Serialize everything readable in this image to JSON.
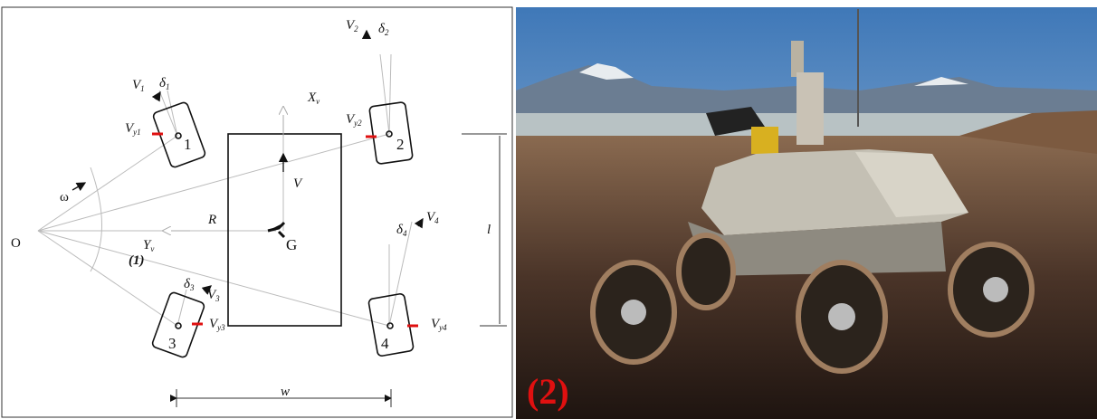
{
  "panels": [
    {
      "label": "(1)"
    },
    {
      "label": "(2)"
    }
  ],
  "diagram": {
    "origin": "O",
    "center": "G",
    "radius": "R",
    "width": "w",
    "length": "l",
    "omega": "ω",
    "velocity": "V",
    "axes": {
      "x": {
        "base": "X",
        "sub": "v"
      },
      "y": {
        "base": "Y",
        "sub": "v"
      }
    },
    "wheels": [
      {
        "number": "1",
        "steer": {
          "base": "δ",
          "sub": "1"
        },
        "speed": {
          "base": "V",
          "sub": "1"
        },
        "lateral": {
          "base": "V",
          "sub": "y1"
        }
      },
      {
        "number": "2",
        "steer": {
          "base": "δ",
          "sub": "2"
        },
        "speed": {
          "base": "V",
          "sub": "2"
        },
        "lateral": {
          "base": "V",
          "sub": "y2"
        }
      },
      {
        "number": "3",
        "steer": {
          "base": "δ",
          "sub": "3"
        },
        "speed": {
          "base": "V",
          "sub": "3"
        },
        "lateral": {
          "base": "V",
          "sub": "y3"
        }
      },
      {
        "number": "4",
        "steer": {
          "base": "δ",
          "sub": "4"
        },
        "speed": {
          "base": "V",
          "sub": "4"
        },
        "lateral": {
          "base": "V",
          "sub": "y4"
        }
      }
    ]
  }
}
